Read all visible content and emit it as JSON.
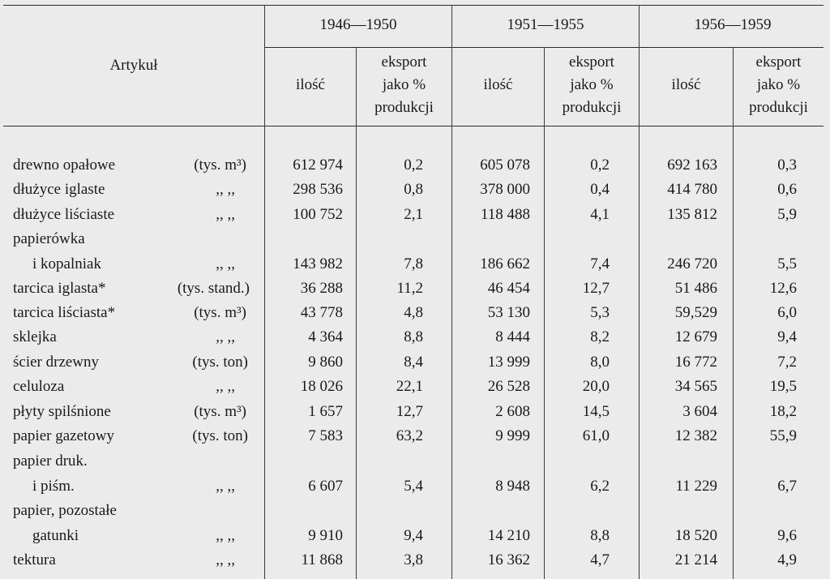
{
  "header": {
    "article": "Artykuł",
    "periods": [
      "1946—1950",
      "1951—1955",
      "1956—1959"
    ],
    "qty": "ilość",
    "export_l1": "eksport",
    "export_l2": "jako %",
    "export_l3": "produkcji"
  },
  "rows": [
    {
      "l1": "drewno opałowe",
      "unit": "(tys. m³)",
      "v": [
        "612 974",
        "0,2",
        "605 078",
        "0,2",
        "692 163",
        "0,3"
      ]
    },
    {
      "l1": "dłużyce iglaste",
      "unit": ",,   ,,",
      "v": [
        "298 536",
        "0,8",
        "378 000",
        "0,4",
        "414 780",
        "0,6"
      ]
    },
    {
      "l1": "dłużyce liściaste",
      "unit": ",,   ,,",
      "v": [
        "100 752",
        "2,1",
        "118 488",
        "4,1",
        "135 812",
        "5,9"
      ]
    },
    {
      "l1": "papierówka",
      "l2": "i kopalniak",
      "unit": ",,   ,,",
      "v": [
        "143 982",
        "7,8",
        "186 662",
        "7,4",
        "246 720",
        "5,5"
      ]
    },
    {
      "l1": "tarcica iglasta*",
      "unit": "(tys. stand.)",
      "v": [
        "36 288",
        "11,2",
        "46 454",
        "12,7",
        "51 486",
        "12,6"
      ]
    },
    {
      "l1": "tarcica liściasta*",
      "unit": "(tys. m³)",
      "v": [
        "43 778",
        "4,8",
        "53 130",
        "5,3",
        "59,529",
        "6,0"
      ]
    },
    {
      "l1": "sklejka",
      "unit": ",,   ,,",
      "v": [
        "4 364",
        "8,8",
        "8 444",
        "8,2",
        "12 679",
        "9,4"
      ]
    },
    {
      "l1": "ścier drzewny",
      "unit": "(tys. ton)",
      "v": [
        "9 860",
        "8,4",
        "13 999",
        "8,0",
        "16 772",
        "7,2"
      ]
    },
    {
      "l1": "celuloza",
      "unit": ",,   ,,",
      "v": [
        "18 026",
        "22,1",
        "26 528",
        "20,0",
        "34 565",
        "19,5"
      ]
    },
    {
      "l1": "płyty spilśnione",
      "unit": "(tys. m³)",
      "v": [
        "1 657",
        "12,7",
        "2 608",
        "14,5",
        "3 604",
        "18,2"
      ]
    },
    {
      "l1": "papier gazetowy",
      "unit": "(tys. ton)",
      "v": [
        "7 583",
        "63,2",
        "9 999",
        "61,0",
        "12 382",
        "55,9"
      ]
    },
    {
      "l1": "papier druk.",
      "l2": "i piśm.",
      "unit": ",,   ,,",
      "v": [
        "6 607",
        "5,4",
        "8 948",
        "6,2",
        "11 229",
        "6,7"
      ]
    },
    {
      "l1": "papier, pozostałe",
      "l2": "gatunki",
      "unit": ",,   ,,",
      "v": [
        "9 910",
        "9,4",
        "14 210",
        "8,8",
        "18 520",
        "9,6"
      ]
    },
    {
      "l1": "tektura",
      "unit": ",,   ,,",
      "v": [
        "11 868",
        "3,8",
        "16 362",
        "4,7",
        "21 214",
        "4,9"
      ]
    }
  ]
}
